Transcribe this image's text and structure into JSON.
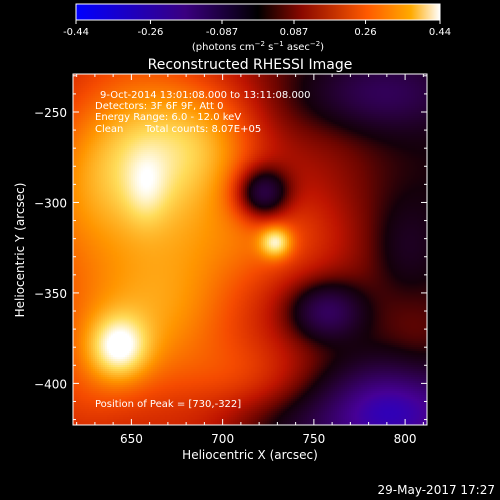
{
  "chart_data": {
    "type": "heatmap",
    "title": "Reconstructed RHESSI Image",
    "colorbar": {
      "ticks": [
        "-0.44",
        "-0.26",
        "-0.087",
        "0.087",
        "0.26",
        "0.44"
      ],
      "tick_values": [
        -0.44,
        -0.26,
        -0.087,
        0.087,
        0.26,
        0.44
      ],
      "range": [
        -0.44,
        0.44
      ],
      "colors": [
        "#0000ff",
        "#3a0080",
        "#000000",
        "#8a0800",
        "#ff5a00",
        "#ffaa00",
        "#ffffff"
      ]
    },
    "annotations": {
      "line1": "9-Oct-2014 13:01:08.000 to 13:11:08.000",
      "line2": "Detectors: 3F 6F 9F, Att 0",
      "line3": "Energy Range: 6.0 - 12.0 keV",
      "clean": "Clean",
      "counts": "Total counts: 8.07E+05",
      "peak": "Position of Peak = [730,-322]"
    },
    "x_axis": {
      "label": "Heliocentric X (arcsec)",
      "range": [
        618,
        812
      ],
      "ticks": [
        650,
        700,
        750,
        800
      ]
    },
    "y_axis": {
      "label": "Heliocentric Y (arcsec)",
      "range": [
        -423,
        -229
      ],
      "ticks": [
        -250,
        -300,
        -350,
        -400
      ]
    },
    "peak": {
      "x": 730,
      "y": -322
    },
    "features": [
      {
        "x": 650,
        "y": -330,
        "sx": 55,
        "sy": 95,
        "amp": 0.27
      },
      {
        "x": 660,
        "y": -260,
        "sx": 35,
        "sy": 35,
        "amp": 0.1
      },
      {
        "x": 643,
        "y": -380,
        "sx": 11,
        "sy": 12,
        "amp": 0.19
      },
      {
        "x": 658,
        "y": -292,
        "sx": 8,
        "sy": 14,
        "amp": 0.06
      },
      {
        "x": 675,
        "y": -300,
        "sx": 25,
        "sy": 40,
        "amp": 0.04
      },
      {
        "x": 730,
        "y": -320,
        "sx": 28,
        "sy": 18,
        "amp": 0.1
      },
      {
        "x": 729,
        "y": -322,
        "sx": 6,
        "sy": 6,
        "amp": 0.2
      },
      {
        "x": 715,
        "y": -395,
        "sx": 28,
        "sy": 15,
        "amp": 0.07
      },
      {
        "x": 760,
        "y": -280,
        "sx": 22,
        "sy": 30,
        "amp": 0.04
      },
      {
        "x": 775,
        "y": -350,
        "sx": 25,
        "sy": 25,
        "amp": 0.03
      },
      {
        "x": 808,
        "y": -388,
        "sx": 15,
        "sy": 25,
        "amp": 0.05
      },
      {
        "x": 700,
        "y": -262,
        "sx": 20,
        "sy": 20,
        "amp": 0.05
      },
      {
        "x": 722,
        "y": -295,
        "sx": 10,
        "sy": 10,
        "amp": -0.26
      },
      {
        "x": 725,
        "y": -258,
        "sx": 20,
        "sy": 16,
        "amp": -0.02
      },
      {
        "x": 757,
        "y": -360,
        "sx": 14,
        "sy": 11,
        "amp": -0.2
      },
      {
        "x": 785,
        "y": -240,
        "sx": 28,
        "sy": 14,
        "amp": -0.14
      },
      {
        "x": 800,
        "y": -325,
        "sx": 12,
        "sy": 18,
        "amp": -0.06
      },
      {
        "x": 795,
        "y": -415,
        "sx": 28,
        "sy": 18,
        "amp": -0.3
      },
      {
        "x": 745,
        "y": -425,
        "sx": 30,
        "sy": 12,
        "amp": -0.06
      }
    ],
    "background": -0.02
  },
  "footer": {
    "date": "29-May-2017 17:27"
  }
}
